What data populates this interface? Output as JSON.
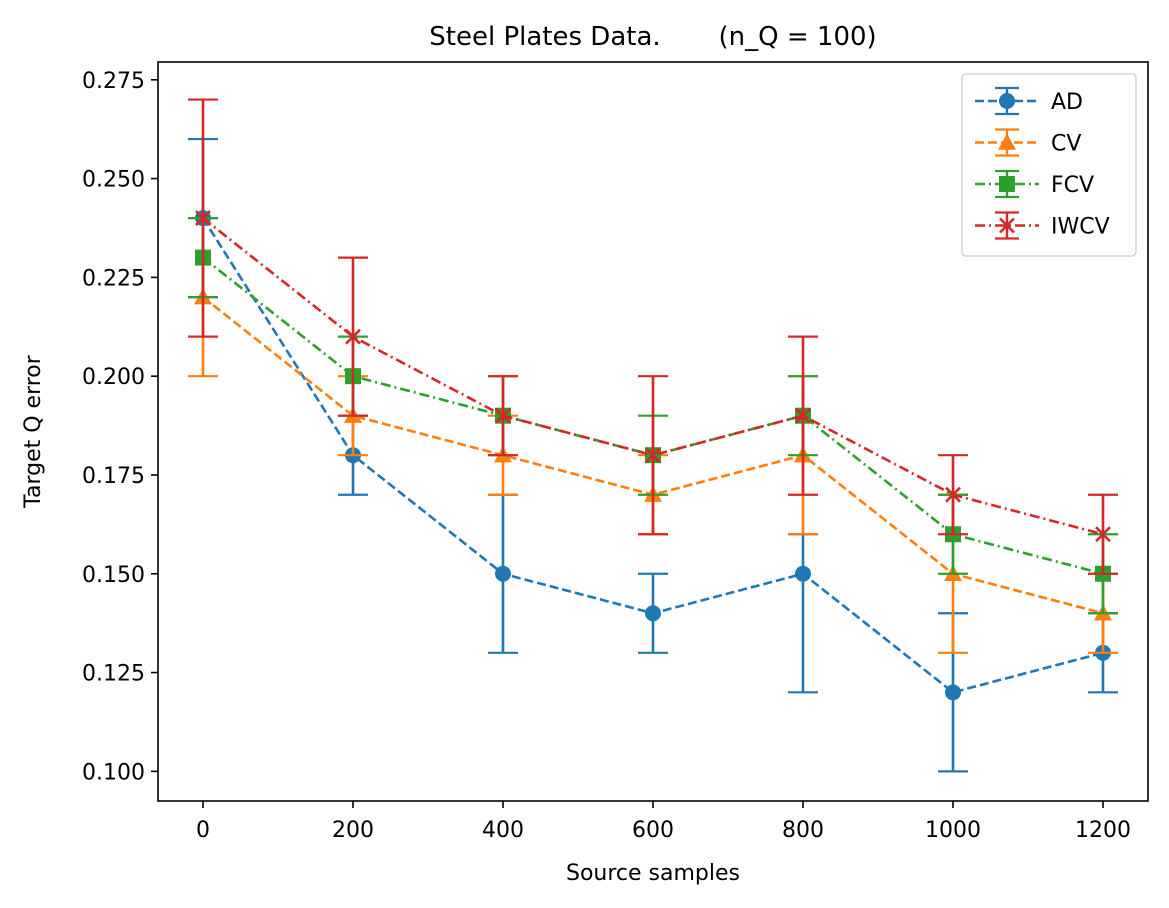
{
  "chart_data": {
    "type": "line",
    "title": "Steel Plates Data.       (n_Q = 100)",
    "xlabel": "Source samples",
    "ylabel": "Target Q error",
    "xlim": [
      -60,
      1260
    ],
    "ylim": [
      0.0925,
      0.2795
    ],
    "x_ticks": [
      "0",
      "200",
      "400",
      "600",
      "800",
      "1000",
      "1200"
    ],
    "y_ticks": [
      "0.100",
      "0.125",
      "0.150",
      "0.175",
      "0.200",
      "0.225",
      "0.250",
      "0.275"
    ],
    "x": [
      0,
      200,
      400,
      600,
      800,
      1000,
      1200
    ],
    "grid": false,
    "legend_position": "top-right",
    "series": [
      {
        "name": "AD",
        "color": "#1f77b4",
        "marker": "circle",
        "dash": "dashed",
        "values": [
          0.24,
          0.18,
          0.15,
          0.14,
          0.15,
          0.12,
          0.13
        ],
        "err_low": [
          0.22,
          0.17,
          0.13,
          0.13,
          0.12,
          0.1,
          0.12
        ],
        "err_high": [
          0.26,
          0.19,
          0.17,
          0.15,
          0.16,
          0.14,
          0.14
        ]
      },
      {
        "name": "CV",
        "color": "#ff7f0e",
        "marker": "triangle",
        "dash": "dashed",
        "values": [
          0.22,
          0.19,
          0.18,
          0.17,
          0.18,
          0.15,
          0.14
        ],
        "err_low": [
          0.2,
          0.18,
          0.17,
          0.16,
          0.16,
          0.13,
          0.13
        ],
        "err_high": [
          0.24,
          0.2,
          0.19,
          0.18,
          0.2,
          0.17,
          0.15
        ]
      },
      {
        "name": "FCV",
        "color": "#2ca02c",
        "marker": "square",
        "dash": "dashdot",
        "values": [
          0.23,
          0.2,
          0.19,
          0.18,
          0.19,
          0.16,
          0.15
        ],
        "err_low": [
          0.22,
          0.19,
          0.18,
          0.17,
          0.18,
          0.15,
          0.14
        ],
        "err_high": [
          0.24,
          0.21,
          0.2,
          0.19,
          0.2,
          0.17,
          0.16
        ]
      },
      {
        "name": "IWCV",
        "color": "#d62728",
        "marker": "x",
        "dash": "dashdot",
        "values": [
          0.24,
          0.21,
          0.19,
          0.18,
          0.19,
          0.17,
          0.16
        ],
        "err_low": [
          0.21,
          0.19,
          0.18,
          0.16,
          0.17,
          0.16,
          0.15
        ],
        "err_high": [
          0.27,
          0.23,
          0.2,
          0.2,
          0.21,
          0.18,
          0.17
        ]
      }
    ]
  }
}
